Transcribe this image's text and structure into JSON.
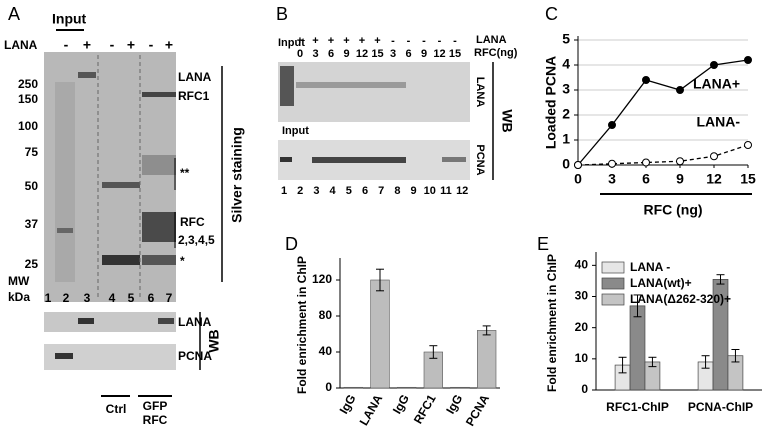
{
  "panel_a": {
    "panel_label": "A",
    "input": "Input",
    "lana": "LANA",
    "signs": [
      "-",
      "+",
      "-",
      "+",
      "-",
      "+"
    ],
    "mw": [
      "250",
      "150",
      "100",
      "75",
      "50",
      "37",
      "25"
    ],
    "mw_label": "MW",
    "kda": "kDa",
    "lanes": [
      "1",
      "2",
      "3",
      "4",
      "5",
      "6",
      "7"
    ],
    "bands": [
      "LANA",
      "RFC1",
      "**",
      "RFC",
      "2,3,4,5",
      "*"
    ],
    "stain": "Silver staining",
    "wb_bands": [
      "LANA",
      "PCNA"
    ],
    "wb": "WB",
    "groups": [
      "Ctrl",
      "GFP",
      "RFC"
    ]
  },
  "panel_b": {
    "panel_label": "B",
    "input": "Input",
    "signs": [
      "+",
      "+",
      "+",
      "+",
      "+",
      "+",
      "-",
      "-",
      "-",
      "-",
      "-"
    ],
    "rfc": [
      "0",
      "3",
      "6",
      "9",
      "12",
      "15",
      "3",
      "6",
      "9",
      "12",
      "15"
    ],
    "lana": "LANA",
    "rfc_label": "RFC(ng)",
    "wb_bands": [
      "LANA",
      "PCNA"
    ],
    "wb": "WB",
    "input2": "Input",
    "lanes": [
      "1",
      "2",
      "3",
      "4",
      "5",
      "6",
      "7",
      "8",
      "9",
      "10",
      "11",
      "12"
    ]
  },
  "chart_data": [
    {
      "type": "line",
      "panel_label": "C",
      "x": [
        0,
        3,
        6,
        9,
        12,
        15
      ],
      "series": [
        {
          "name": "LANA+",
          "color": "#000000",
          "marker": "filled",
          "dashed": false,
          "values": [
            0,
            1.6,
            3.4,
            3.0,
            4.0,
            4.2
          ]
        },
        {
          "name": "LANA-",
          "color": "#000000",
          "marker": "open",
          "dashed": true,
          "values": [
            0,
            0.05,
            0.1,
            0.15,
            0.35,
            0.8
          ]
        }
      ],
      "xlim": [
        0,
        15
      ],
      "xticks": [
        0,
        3,
        6,
        9,
        12,
        15
      ],
      "ylim": [
        0,
        5
      ],
      "yticks": [
        0,
        1,
        2,
        3,
        4,
        5
      ],
      "x_label": "RFC (ng)",
      "y_label": "Loaded PCNA",
      "grid": true
    },
    {
      "type": "bar",
      "panel_label": "D",
      "categories": [
        "IgG",
        "LANA",
        "IgG",
        "RFC1",
        "IgG",
        "PCNA"
      ],
      "values": [
        0.8,
        120,
        0.8,
        40,
        0.8,
        64
      ],
      "errors": [
        null,
        12,
        null,
        7,
        null,
        5
      ],
      "color": "#bdbdbd",
      "ylim": [
        0,
        140
      ],
      "yticks": [
        0,
        40,
        80,
        120
      ],
      "y_label": "Fold enrichment in ChIP"
    },
    {
      "type": "groupedbar",
      "panel_label": "E",
      "categories": [
        "RFC1-ChIP",
        "PCNA-ChIP"
      ],
      "series": [
        {
          "name": "LANA -",
          "color": "#e6e6e6",
          "values": [
            8,
            9
          ],
          "errors": [
            2.5,
            2
          ]
        },
        {
          "name": "LANA(wt)+",
          "color": "#8a8a8a",
          "values": [
            27,
            35.5
          ],
          "errors": [
            3.5,
            1.5
          ]
        },
        {
          "name": "LANA(Δ262-320)+",
          "color": "#c4c4c4",
          "values": [
            9,
            11
          ],
          "errors": [
            1.5,
            2
          ]
        }
      ],
      "ylim": [
        0,
        43
      ],
      "yticks": [
        0,
        10,
        20,
        30,
        40
      ],
      "y_label": "Fold enrichment in ChIP",
      "legend": "upper left"
    }
  ]
}
